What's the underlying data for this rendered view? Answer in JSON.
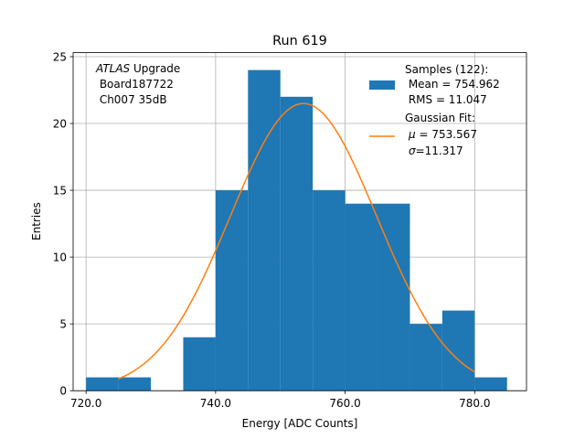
{
  "chart_data": {
    "type": "bar",
    "title": "Run 619",
    "xlabel": "Energy [ADC Counts]",
    "ylabel": "Entries",
    "xlim": [
      718,
      788
    ],
    "ylim": [
      0,
      25.3
    ],
    "xticks": [
      720,
      740,
      760,
      780
    ],
    "xtick_labels": [
      "720.0",
      "740.0",
      "760.0",
      "780.0"
    ],
    "yticks": [
      0,
      5,
      10,
      15,
      20,
      25
    ],
    "ytick_labels": [
      "0",
      "5",
      "10",
      "15",
      "20",
      "25"
    ],
    "grid": true,
    "legend_position": "top-right",
    "bins": [
      {
        "x0": 720,
        "x1": 725,
        "count": 1
      },
      {
        "x0": 725,
        "x1": 730,
        "count": 1
      },
      {
        "x0": 730,
        "x1": 735,
        "count": 0
      },
      {
        "x0": 735,
        "x1": 740,
        "count": 4
      },
      {
        "x0": 740,
        "x1": 745,
        "count": 15
      },
      {
        "x0": 745,
        "x1": 750,
        "count": 24
      },
      {
        "x0": 750,
        "x1": 755,
        "count": 22
      },
      {
        "x0": 755,
        "x1": 760,
        "count": 15
      },
      {
        "x0": 760,
        "x1": 765,
        "count": 14
      },
      {
        "x0": 765,
        "x1": 770,
        "count": 14
      },
      {
        "x0": 770,
        "x1": 775,
        "count": 5
      },
      {
        "x0": 775,
        "x1": 780,
        "count": 6
      },
      {
        "x0": 780,
        "x1": 785,
        "count": 1
      }
    ],
    "fit": {
      "type": "gaussian",
      "mu": 753.567,
      "sigma": 11.317,
      "amplitude": 21.5,
      "x_range": [
        725,
        780
      ]
    },
    "series": [
      {
        "name": "Samples (122):",
        "color": "#1f77b4"
      },
      {
        "name": "Gaussian Fit:",
        "color": "#ff7f0e"
      }
    ],
    "legend": {
      "samples_title": "Samples (122):",
      "samples_mean": " Mean = 754.962",
      "samples_rms": " RMS = 11.047",
      "fit_title": "Gaussian Fit:",
      "fit_mu_symbol": "μ",
      "fit_mu_value": " = 753.567",
      "fit_sigma_symbol": "σ",
      "fit_sigma_value": "=11.317"
    },
    "annotation": {
      "experiment": "ATLAS",
      "suffix": " Upgrade",
      "board": " Board187722",
      "channel": " Ch007 35dB"
    }
  }
}
